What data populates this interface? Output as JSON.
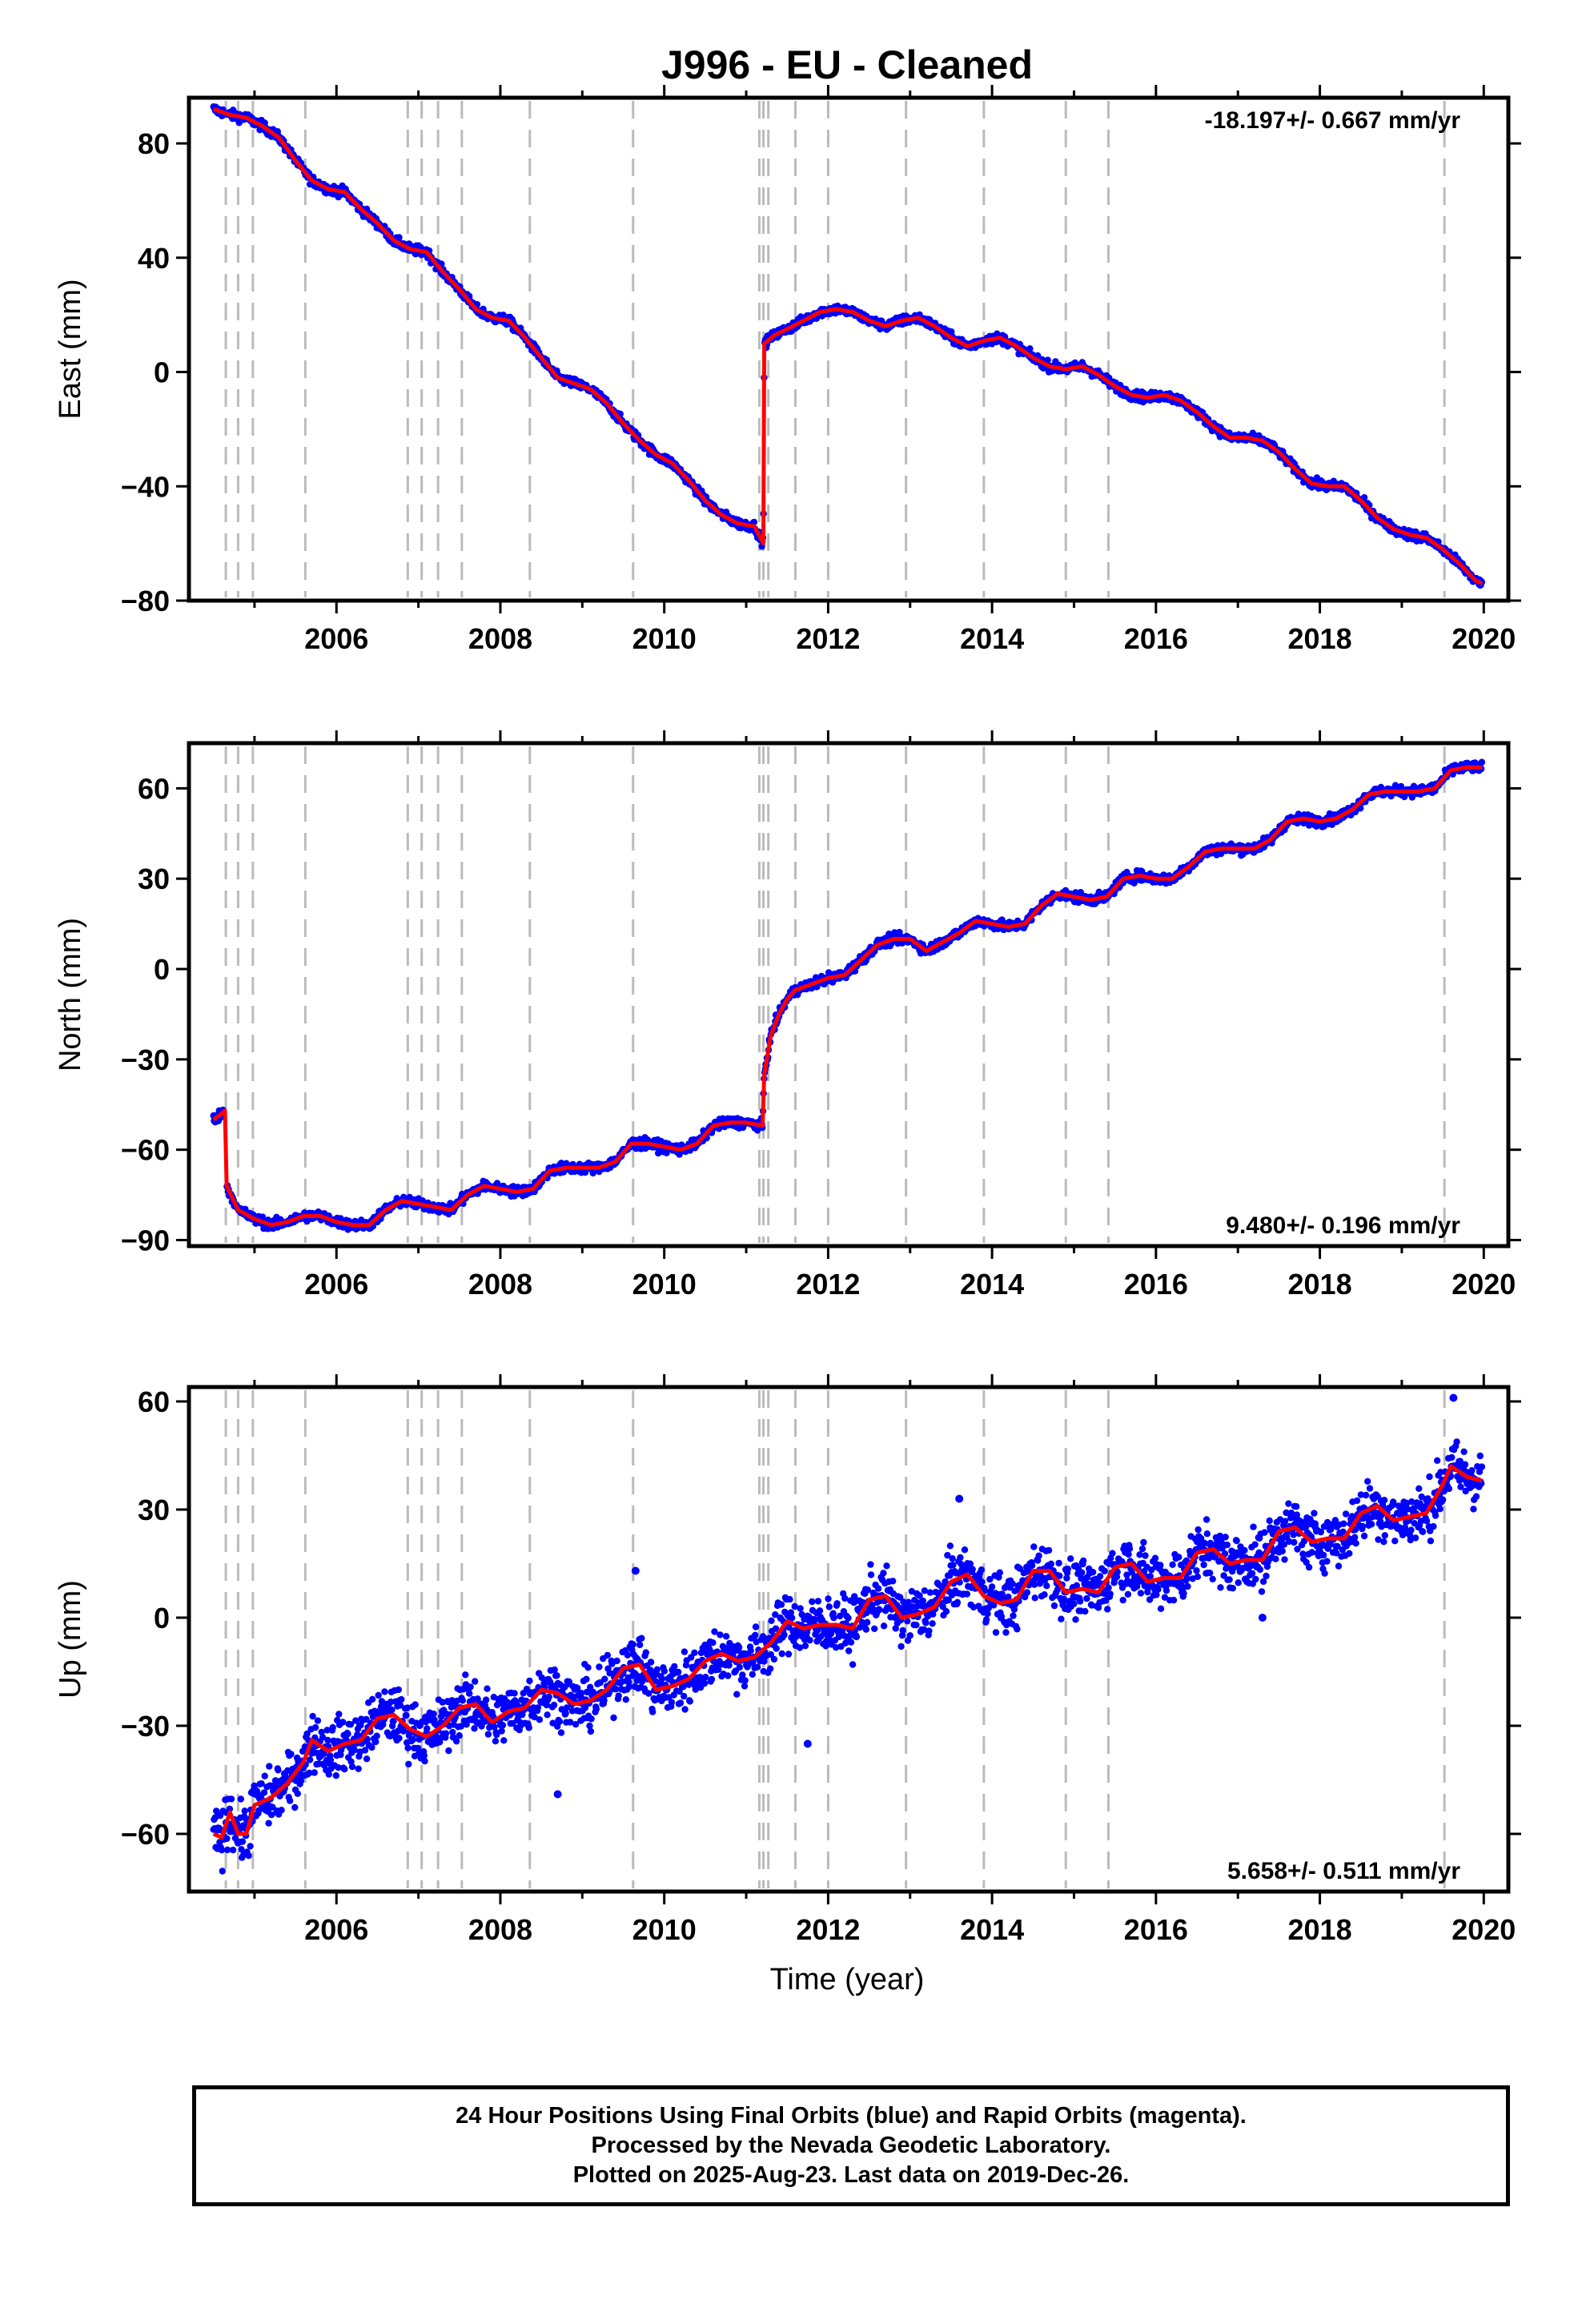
{
  "title": "J996  - EU - Cleaned",
  "x_axis_label": "Time (year)",
  "footer": {
    "line1": "24 Hour Positions Using Final Orbits (blue) and Rapid Orbits (magenta).",
    "line2": "Processed by the Nevada Geodetic Laboratory.",
    "line3": "Plotted on 2025-Aug-23. Last data on 2019-Dec-26."
  },
  "colors": {
    "final_orbits": "#0000ff",
    "model_fit": "#ff0000",
    "event_lines": "#bbbbbb",
    "frame": "#000000"
  },
  "chart_data": [
    {
      "type": "scatter",
      "ylabel": "East (mm)",
      "rate_text": "-18.197+/- 0.667 mm/yr",
      "rate_position": "top-right",
      "xlim": [
        2004.2,
        2020.3
      ],
      "ylim": [
        -80,
        96
      ],
      "x_ticks": [
        2006,
        2008,
        2010,
        2012,
        2014,
        2016,
        2018,
        2020
      ],
      "y_ticks": [
        80,
        40,
        0,
        -40,
        -80
      ],
      "grid": false,
      "event_lines": [
        2004.65,
        2004.8,
        2004.98,
        2005.62,
        2006.87,
        2007.04,
        2007.24,
        2007.53,
        2008.36,
        2009.62,
        2011.16,
        2011.21,
        2011.27,
        2011.6,
        2012.0,
        2012.95,
        2013.9,
        2014.9,
        2015.42,
        2019.52
      ],
      "series": [
        {
          "x": [
            2004.5,
            2004.7,
            2004.9,
            2005.1,
            2005.3,
            2005.5,
            2005.7,
            2005.9,
            2006.1,
            2006.3,
            2006.5,
            2006.7,
            2006.9,
            2007.1,
            2007.3,
            2007.5,
            2007.7,
            2007.9,
            2008.1,
            2008.3,
            2008.5,
            2008.7,
            2008.9,
            2009.1,
            2009.3,
            2009.5,
            2009.7,
            2009.9,
            2010.1,
            2010.3,
            2010.5,
            2010.7,
            2010.9,
            2011.1,
            2011.21,
            2011.22,
            2011.35,
            2011.5,
            2011.7,
            2011.9,
            2012.1,
            2012.3,
            2012.5,
            2012.7,
            2012.9,
            2013.1,
            2013.3,
            2013.5,
            2013.7,
            2013.9,
            2014.1,
            2014.3,
            2014.5,
            2014.7,
            2014.9,
            2015.1,
            2015.3,
            2015.5,
            2015.7,
            2015.9,
            2016.1,
            2016.3,
            2016.5,
            2016.7,
            2016.9,
            2017.1,
            2017.3,
            2017.5,
            2017.7,
            2017.9,
            2018.1,
            2018.3,
            2018.5,
            2018.7,
            2018.9,
            2019.1,
            2019.3,
            2019.5,
            2019.7,
            2019.9,
            2019.98
          ],
          "y": [
            92,
            90,
            89,
            86,
            82,
            74,
            67,
            64,
            63,
            57,
            52,
            46,
            43,
            42,
            35,
            29,
            22,
            19,
            18,
            12,
            5,
            -2,
            -4,
            -6,
            -11,
            -18,
            -24,
            -29,
            -32,
            -38,
            -45,
            -50,
            -53,
            -54,
            -60,
            10,
            13,
            15,
            18,
            21,
            22,
            21,
            18,
            16,
            18,
            19,
            16,
            12,
            9,
            11,
            12,
            9,
            5,
            2,
            1,
            2,
            -1,
            -5,
            -8,
            -9,
            -8,
            -10,
            -14,
            -19,
            -23,
            -23,
            -24,
            -28,
            -34,
            -39,
            -40,
            -40,
            -45,
            -51,
            -55,
            -57,
            -58,
            -62,
            -67,
            -73,
            -74
          ]
        }
      ]
    },
    {
      "type": "scatter",
      "ylabel": "North (mm)",
      "rate_text": "9.480+/- 0.196 mm/yr",
      "rate_position": "bottom-right",
      "xlim": [
        2004.2,
        2020.3
      ],
      "ylim": [
        -92,
        75
      ],
      "x_ticks": [
        2006,
        2008,
        2010,
        2012,
        2014,
        2016,
        2018,
        2020
      ],
      "y_ticks": [
        60,
        30,
        0,
        -30,
        -60,
        -90
      ],
      "grid": false,
      "event_lines": [
        2004.65,
        2004.8,
        2004.98,
        2005.62,
        2006.87,
        2007.04,
        2007.24,
        2007.53,
        2008.36,
        2009.62,
        2011.16,
        2011.21,
        2011.27,
        2011.6,
        2012.0,
        2012.95,
        2013.9,
        2014.9,
        2015.42,
        2019.52
      ],
      "series": [
        {
          "x": [
            2004.5,
            2004.6,
            2004.64,
            2004.66,
            2004.8,
            2005.0,
            2005.2,
            2005.4,
            2005.6,
            2005.8,
            2006.0,
            2006.2,
            2006.4,
            2006.6,
            2006.8,
            2007.0,
            2007.2,
            2007.4,
            2007.6,
            2007.8,
            2008.0,
            2008.2,
            2008.4,
            2008.6,
            2008.8,
            2009.0,
            2009.2,
            2009.4,
            2009.6,
            2009.8,
            2010.0,
            2010.2,
            2010.4,
            2010.6,
            2010.8,
            2011.0,
            2011.2,
            2011.22,
            2011.3,
            2011.4,
            2011.5,
            2011.6,
            2011.8,
            2012.0,
            2012.2,
            2012.4,
            2012.6,
            2012.8,
            2013.0,
            2013.2,
            2013.4,
            2013.6,
            2013.8,
            2014.0,
            2014.2,
            2014.4,
            2014.6,
            2014.8,
            2015.0,
            2015.2,
            2015.4,
            2015.6,
            2015.8,
            2016.0,
            2016.2,
            2016.4,
            2016.6,
            2016.8,
            2017.0,
            2017.2,
            2017.4,
            2017.6,
            2017.8,
            2018.0,
            2018.2,
            2018.4,
            2018.6,
            2018.8,
            2019.0,
            2019.2,
            2019.4,
            2019.6,
            2019.8,
            2019.98
          ],
          "y": [
            -50,
            -48,
            -47,
            -72,
            -80,
            -83,
            -85,
            -84,
            -82,
            -82,
            -84,
            -85,
            -85,
            -80,
            -77,
            -78,
            -79,
            -80,
            -75,
            -72,
            -73,
            -74,
            -73,
            -67,
            -66,
            -66,
            -66,
            -64,
            -58,
            -58,
            -59,
            -60,
            -58,
            -52,
            -51,
            -51,
            -52,
            -35,
            -22,
            -15,
            -10,
            -7,
            -5,
            -3,
            -2,
            3,
            8,
            10,
            10,
            6,
            9,
            12,
            16,
            15,
            14,
            15,
            21,
            25,
            24,
            23,
            24,
            30,
            31,
            30,
            30,
            34,
            39,
            40,
            40,
            40,
            43,
            49,
            50,
            49,
            50,
            53,
            58,
            59,
            59,
            59,
            60,
            66,
            67,
            67
          ]
        }
      ]
    },
    {
      "type": "scatter",
      "ylabel": "Up (mm)",
      "rate_text": "5.658+/- 0.511 mm/yr",
      "rate_position": "bottom-right",
      "xlim": [
        2004.2,
        2020.3
      ],
      "ylim": [
        -76,
        64
      ],
      "x_ticks": [
        2006,
        2008,
        2010,
        2012,
        2014,
        2016,
        2018,
        2020
      ],
      "y_ticks": [
        60,
        30,
        0,
        -30,
        -60
      ],
      "grid": false,
      "event_lines": [
        2004.65,
        2004.8,
        2004.98,
        2005.62,
        2006.87,
        2007.04,
        2007.24,
        2007.53,
        2008.36,
        2009.62,
        2011.16,
        2011.21,
        2011.27,
        2011.6,
        2012.0,
        2012.95,
        2013.9,
        2014.9,
        2015.42,
        2019.52
      ],
      "series": [
        {
          "x": [
            2004.5,
            2004.6,
            2004.7,
            2004.8,
            2004.9,
            2005.0,
            2005.2,
            2005.4,
            2005.6,
            2005.7,
            2005.9,
            2006.1,
            2006.3,
            2006.5,
            2006.7,
            2006.9,
            2007.1,
            2007.3,
            2007.5,
            2007.7,
            2007.9,
            2008.1,
            2008.3,
            2008.5,
            2008.7,
            2008.9,
            2009.1,
            2009.3,
            2009.5,
            2009.7,
            2009.9,
            2010.1,
            2010.3,
            2010.5,
            2010.7,
            2010.9,
            2011.1,
            2011.3,
            2011.5,
            2011.7,
            2011.9,
            2012.1,
            2012.3,
            2012.5,
            2012.7,
            2012.9,
            2013.1,
            2013.3,
            2013.5,
            2013.7,
            2013.9,
            2014.1,
            2014.3,
            2014.5,
            2014.7,
            2014.9,
            2015.1,
            2015.3,
            2015.5,
            2015.7,
            2015.9,
            2016.1,
            2016.3,
            2016.5,
            2016.7,
            2016.9,
            2017.1,
            2017.3,
            2017.5,
            2017.7,
            2017.9,
            2018.1,
            2018.3,
            2018.5,
            2018.7,
            2018.9,
            2019.1,
            2019.3,
            2019.5,
            2019.6,
            2019.8,
            2019.98
          ],
          "y": [
            -60,
            -61,
            -54,
            -60,
            -60,
            -52,
            -50,
            -46,
            -40,
            -34,
            -37,
            -35,
            -34,
            -28,
            -27,
            -31,
            -33,
            -30,
            -25,
            -24,
            -29,
            -26,
            -25,
            -20,
            -21,
            -24,
            -23,
            -20,
            -14,
            -13,
            -20,
            -19,
            -17,
            -12,
            -10,
            -12,
            -11,
            -7,
            -1,
            -3,
            -2,
            -2,
            -3,
            5,
            6,
            0,
            1,
            3,
            10,
            12,
            6,
            4,
            5,
            13,
            13,
            7,
            8,
            7,
            14,
            15,
            10,
            11,
            11,
            18,
            19,
            15,
            16,
            16,
            24,
            25,
            21,
            22,
            22,
            29,
            31,
            27,
            28,
            29,
            37,
            42,
            39,
            38
          ]
        }
      ]
    }
  ]
}
